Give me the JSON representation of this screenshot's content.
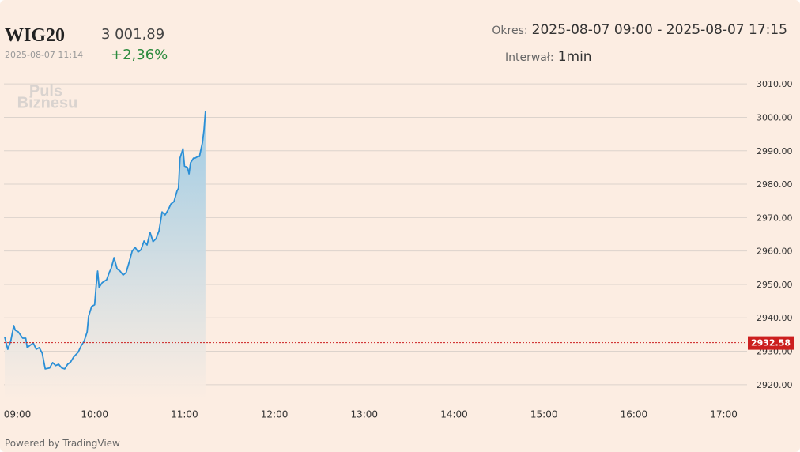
{
  "header": {
    "symbol": "WIG20",
    "price": "3 001,89",
    "timestamp": "2025-08-07 11:14",
    "change": "+2,36%",
    "period_label": "Okres:",
    "period": "2025-08-07 09:00 - 2025-08-07 17:15",
    "interval_label": "Interwał:",
    "interval": "1min",
    "watermark": [
      "Puls",
      "Biznesu"
    ],
    "footer": "Powered by TradingView"
  },
  "chart_data": {
    "type": "area",
    "color": "#2b8fd6",
    "x": [
      "09:00",
      "09:02",
      "09:04",
      "09:06",
      "09:07",
      "09:09",
      "09:12",
      "09:14",
      "09:15",
      "09:17",
      "09:19",
      "09:21",
      "09:23",
      "09:25",
      "09:27",
      "09:30",
      "09:32",
      "09:34",
      "09:36",
      "09:38",
      "09:40",
      "09:42",
      "09:44",
      "09:46",
      "09:49",
      "09:51",
      "09:53",
      "09:55",
      "09:56",
      "09:58",
      "10:00",
      "10:01",
      "10:02",
      "10:03",
      "10:05",
      "10:08",
      "10:10",
      "10:11",
      "10:13",
      "10:15",
      "10:17",
      "10:19",
      "10:21",
      "10:23",
      "10:25",
      "10:27",
      "10:29",
      "10:31",
      "10:33",
      "10:35",
      "10:37",
      "10:39",
      "10:41",
      "10:43",
      "10:45",
      "10:47",
      "10:49",
      "10:51",
      "10:53",
      "10:55",
      "10:56",
      "10:57",
      "10:59",
      "11:00",
      "11:02",
      "11:03",
      "11:04",
      "11:06",
      "11:07",
      "11:09",
      "11:10",
      "11:12",
      "11:13",
      "11:14"
    ],
    "values": [
      2934.2,
      2930.6,
      2933.0,
      2937.7,
      2936.3,
      2935.8,
      2933.9,
      2933.9,
      2931.1,
      2931.8,
      2932.5,
      2930.6,
      2931.1,
      2929.4,
      2924.7,
      2925.0,
      2926.6,
      2925.7,
      2926.1,
      2925.0,
      2924.7,
      2926.1,
      2926.8,
      2928.3,
      2929.7,
      2931.6,
      2933.0,
      2935.8,
      2940.5,
      2943.4,
      2943.9,
      2949.5,
      2954.0,
      2949.1,
      2950.5,
      2951.4,
      2953.8,
      2954.7,
      2958.0,
      2954.7,
      2954.0,
      2952.8,
      2953.5,
      2956.6,
      2959.9,
      2961.1,
      2959.7,
      2960.4,
      2963.0,
      2961.8,
      2965.6,
      2962.8,
      2963.7,
      2966.1,
      2971.7,
      2970.8,
      2972.2,
      2974.1,
      2974.8,
      2977.9,
      2978.8,
      2987.8,
      2990.6,
      2985.4,
      2985.0,
      2983.1,
      2986.4,
      2987.8,
      2987.8,
      2988.3,
      2988.3,
      2992.5,
      2996.1,
      3001.89
    ],
    "xlim": [
      "09:00",
      "17:15"
    ],
    "xticks": [
      "09:00",
      "10:00",
      "11:00",
      "12:00",
      "13:00",
      "14:00",
      "15:00",
      "16:00",
      "17:00"
    ],
    "ylim": [
      2915.7,
      3014.3
    ],
    "yticks": [
      {
        "value": 2920,
        "label": "2920.00"
      },
      {
        "value": 2930,
        "label": "2930.00"
      },
      {
        "value": 2940,
        "label": "2940.00"
      },
      {
        "value": 2950,
        "label": "2950.00"
      },
      {
        "value": 2960,
        "label": "2960.00"
      },
      {
        "value": 2970,
        "label": "2970.00"
      },
      {
        "value": 2980,
        "label": "2980.00"
      },
      {
        "value": 2990,
        "label": "2990.00"
      },
      {
        "value": 3000,
        "label": "3000.00"
      },
      {
        "value": 3010,
        "label": "3010.00"
      }
    ],
    "grid": true,
    "reference_line": {
      "value": 2932.58,
      "color": "#cc1f1f"
    }
  }
}
